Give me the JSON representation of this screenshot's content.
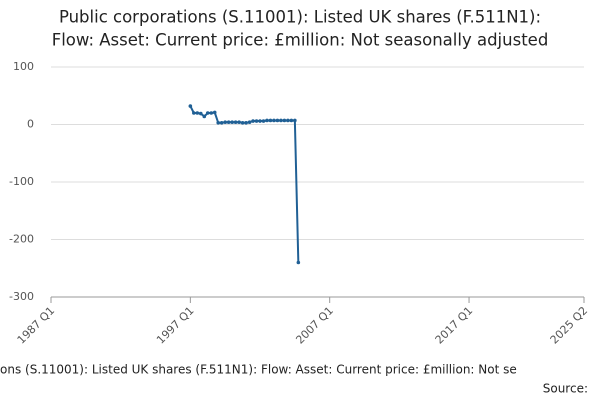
{
  "chart_data": {
    "type": "line",
    "title": [
      "Public corporations (S.11001): Listed UK shares (F.511N1):",
      "Flow: Asset: Current price: £million: Not seasonally adjusted"
    ],
    "footer": "ons (S.11001): Listed UK shares (F.511N1): Flow: Asset: Current price: £million: Not se",
    "source": "Source:",
    "x": [
      1997,
      1997.25,
      1997.5,
      1997.75,
      1998,
      1998.25,
      1998.5,
      1998.75,
      1999,
      1999.25,
      1999.5,
      1999.75,
      2000,
      2000.25,
      2000.5,
      2000.75,
      2001,
      2001.25,
      2001.5,
      2001.75,
      2002,
      2002.25,
      2002.5,
      2002.75,
      2003,
      2003.25,
      2003.5,
      2003.75,
      2004,
      2004.25,
      2004.5,
      2004.75
    ],
    "series": [
      {
        "color": "#206095",
        "values": [
          32,
          20,
          20,
          19,
          14,
          20,
          20,
          21,
          3,
          3,
          4,
          4,
          4,
          4,
          4,
          3,
          3,
          4,
          6,
          6,
          6,
          6,
          7,
          7,
          7,
          7,
          7,
          7,
          7,
          7,
          7,
          -240
        ]
      }
    ],
    "xlim": [
      1987,
      2025.25
    ],
    "xticks": [
      {
        "value": 1987,
        "label": "1987 Q1"
      },
      {
        "value": 1997,
        "label": "1997 Q1"
      },
      {
        "value": 2007,
        "label": "2007 Q1"
      },
      {
        "value": 2017,
        "label": "2017 Q1"
      },
      {
        "value": 2025.25,
        "label": "2025 Q2"
      }
    ],
    "ylim": [
      -300,
      100
    ],
    "yticks": [
      -300,
      -200,
      -100,
      0,
      100
    ],
    "grid": true
  }
}
